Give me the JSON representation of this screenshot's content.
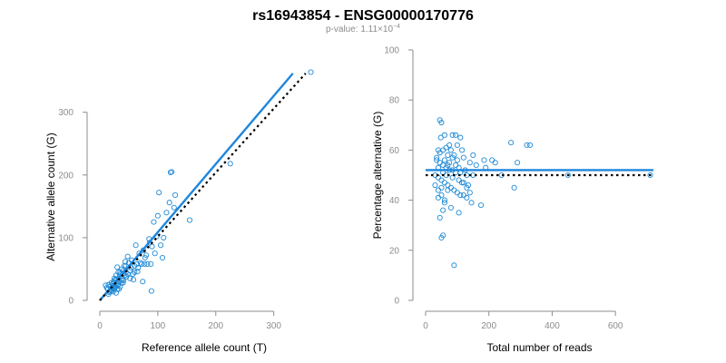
{
  "figure": {
    "title": "rs16943854 - ENSG00000170776",
    "subtitle_prefix": "p-value: 1.11×10",
    "subtitle_exponent": "−4"
  },
  "colors": {
    "points": "#1f8ad6",
    "fit_line": "#1f86dc",
    "reference_line": "#000000",
    "axis": "#8c8c8c"
  },
  "chart_data": [
    {
      "type": "scatter",
      "title": "",
      "xlabel": "Reference allele count (T)",
      "ylabel": "Alternative allele count (G)",
      "xlim": [
        0,
        360
      ],
      "ylim": [
        0,
        330
      ],
      "xticks": [
        0,
        100,
        200,
        300
      ],
      "yticks": [
        0,
        100,
        200,
        300
      ],
      "lines": [
        {
          "role": "fit",
          "style": "solid",
          "from": [
            0,
            0
          ],
          "to": [
            333,
            362
          ]
        },
        {
          "role": "expected",
          "style": "dotted",
          "from": [
            0,
            0
          ],
          "to": [
            355,
            362
          ]
        }
      ],
      "points": [
        [
          364,
          364
        ],
        [
          10,
          24
        ],
        [
          12,
          20
        ],
        [
          14,
          18
        ],
        [
          15,
          25
        ],
        [
          16,
          13
        ],
        [
          18,
          22
        ],
        [
          19,
          16
        ],
        [
          20,
          28
        ],
        [
          21,
          19
        ],
        [
          22,
          23
        ],
        [
          23,
          14
        ],
        [
          24,
          30
        ],
        [
          25,
          18
        ],
        [
          26,
          25
        ],
        [
          27,
          21
        ],
        [
          28,
          12
        ],
        [
          28,
          34
        ],
        [
          29,
          27
        ],
        [
          30,
          53
        ],
        [
          31,
          24
        ],
        [
          32,
          45
        ],
        [
          33,
          30
        ],
        [
          34,
          38
        ],
        [
          35,
          22
        ],
        [
          36,
          42
        ],
        [
          37,
          28
        ],
        [
          38,
          50
        ],
        [
          39,
          35
        ],
        [
          40,
          47
        ],
        [
          41,
          32
        ],
        [
          42,
          55
        ],
        [
          43,
          40
        ],
        [
          44,
          62
        ],
        [
          45,
          45
        ],
        [
          46,
          38
        ],
        [
          48,
          70
        ],
        [
          50,
          60
        ],
        [
          52,
          48
        ],
        [
          54,
          52
        ],
        [
          55,
          64
        ],
        [
          57,
          42
        ],
        [
          58,
          33
        ],
        [
          60,
          55
        ],
        [
          62,
          88
        ],
        [
          64,
          58
        ],
        [
          65,
          46
        ],
        [
          66,
          52
        ],
        [
          68,
          75
        ],
        [
          70,
          60
        ],
        [
          72,
          58
        ],
        [
          74,
          30
        ],
        [
          75,
          80
        ],
        [
          77,
          58
        ],
        [
          78,
          68
        ],
        [
          80,
          72
        ],
        [
          82,
          58
        ],
        [
          85,
          98
        ],
        [
          86,
          92
        ],
        [
          88,
          58
        ],
        [
          89,
          15
        ],
        [
          90,
          86
        ],
        [
          93,
          125
        ],
        [
          95,
          75
        ],
        [
          98,
          102
        ],
        [
          100,
          135
        ],
        [
          102,
          172
        ],
        [
          105,
          88
        ],
        [
          108,
          68
        ],
        [
          110,
          100
        ],
        [
          115,
          140
        ],
        [
          120,
          156
        ],
        [
          122,
          204
        ],
        [
          124,
          205
        ],
        [
          128,
          148
        ],
        [
          130,
          168
        ],
        [
          155,
          128
        ],
        [
          225,
          218
        ],
        [
          20,
          16
        ],
        [
          22,
          26
        ],
        [
          24,
          20
        ],
        [
          26,
          32
        ],
        [
          30,
          18
        ],
        [
          32,
          26
        ],
        [
          35,
          45
        ],
        [
          38,
          32
        ],
        [
          45,
          55
        ],
        [
          15,
          10
        ],
        [
          18,
          14
        ],
        [
          25,
          35
        ],
        [
          28,
          40
        ],
        [
          33,
          18
        ],
        [
          40,
          28
        ],
        [
          48,
          42
        ],
        [
          52,
          35
        ],
        [
          60,
          45
        ]
      ]
    },
    {
      "type": "scatter",
      "title": "",
      "xlabel": "Total number of reads",
      "ylabel": "Percentage alternative (G)",
      "xlim": [
        0,
        720
      ],
      "ylim": [
        0,
        100
      ],
      "xticks": [
        0,
        200,
        400,
        600
      ],
      "yticks": [
        0,
        20,
        40,
        60,
        80,
        100
      ],
      "lines": [
        {
          "role": "fit",
          "style": "solid",
          "from": [
            0,
            52
          ],
          "to": [
            720,
            52
          ]
        },
        {
          "role": "expected",
          "style": "dotted",
          "from": [
            0,
            50
          ],
          "to": [
            720,
            50
          ]
        }
      ],
      "points": [
        [
          45,
          72
        ],
        [
          50,
          71
        ],
        [
          60,
          66
        ],
        [
          48,
          65
        ],
        [
          75,
          62
        ],
        [
          95,
          66
        ],
        [
          55,
          60
        ],
        [
          40,
          60
        ],
        [
          70,
          58
        ],
        [
          85,
          57
        ],
        [
          100,
          56
        ],
        [
          120,
          57
        ],
        [
          140,
          55
        ],
        [
          160,
          54
        ],
        [
          190,
          53
        ],
        [
          220,
          55
        ],
        [
          270,
          63
        ],
        [
          290,
          55
        ],
        [
          320,
          62
        ],
        [
          330,
          62
        ],
        [
          35,
          56
        ],
        [
          45,
          55
        ],
        [
          55,
          54
        ],
        [
          65,
          53
        ],
        [
          75,
          52
        ],
        [
          85,
          52
        ],
        [
          95,
          51
        ],
        [
          110,
          51
        ],
        [
          130,
          50
        ],
        [
          150,
          50
        ],
        [
          30,
          50
        ],
        [
          40,
          49
        ],
        [
          50,
          48
        ],
        [
          60,
          47
        ],
        [
          70,
          46
        ],
        [
          80,
          45
        ],
        [
          90,
          44
        ],
        [
          100,
          43
        ],
        [
          110,
          42
        ],
        [
          120,
          42
        ],
        [
          130,
          41
        ],
        [
          145,
          39
        ],
        [
          175,
          38
        ],
        [
          40,
          44
        ],
        [
          50,
          42
        ],
        [
          60,
          40
        ],
        [
          55,
          36
        ],
        [
          45,
          33
        ],
        [
          55,
          26
        ],
        [
          50,
          25
        ],
        [
          120,
          47
        ],
        [
          130,
          45
        ],
        [
          140,
          43
        ],
        [
          280,
          45
        ],
        [
          240,
          50
        ],
        [
          450,
          50
        ],
        [
          710,
          50
        ],
        [
          90,
          14
        ],
        [
          35,
          57
        ],
        [
          45,
          59
        ],
        [
          65,
          61
        ],
        [
          80,
          60
        ],
        [
          100,
          62
        ],
        [
          115,
          60
        ],
        [
          150,
          58
        ],
        [
          185,
          56
        ],
        [
          210,
          56
        ],
        [
          75,
          55
        ],
        [
          95,
          54
        ],
        [
          105,
          53
        ],
        [
          125,
          52
        ],
        [
          40,
          53
        ],
        [
          55,
          51
        ],
        [
          65,
          50
        ],
        [
          85,
          49
        ],
        [
          105,
          48
        ],
        [
          115,
          47
        ],
        [
          135,
          46
        ],
        [
          30,
          46
        ],
        [
          50,
          45
        ],
        [
          70,
          44
        ],
        [
          40,
          41
        ],
        [
          60,
          39
        ],
        [
          80,
          37
        ],
        [
          105,
          35
        ],
        [
          85,
          66
        ],
        [
          110,
          65
        ],
        [
          90,
          58
        ],
        [
          60,
          56
        ],
        [
          70,
          54
        ]
      ]
    }
  ]
}
